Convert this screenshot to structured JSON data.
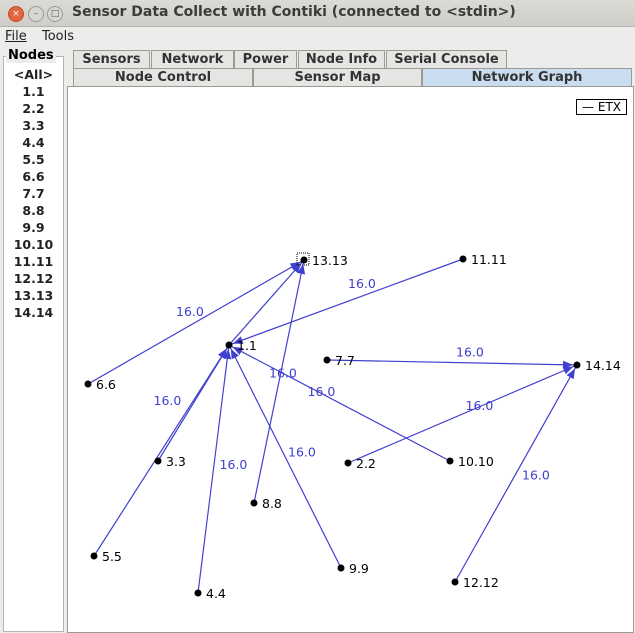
{
  "window": {
    "title": "Sensor Data Collect with Contiki (connected to <stdin>)"
  },
  "menu": {
    "file": "File",
    "tools": "Tools"
  },
  "nodes": {
    "header": "Nodes",
    "items": [
      "<All>",
      "1.1",
      "2.2",
      "3.3",
      "4.4",
      "5.5",
      "6.6",
      "7.7",
      "8.8",
      "9.9",
      "10.10",
      "11.11",
      "12.12",
      "13.13",
      "14.14"
    ]
  },
  "tabs": {
    "row1": [
      "Sensors",
      "Network",
      "Power",
      "Node Info",
      "Serial Console"
    ],
    "row2": [
      "Node Control",
      "Sensor Map",
      "Network Graph"
    ],
    "selected": "Network Graph"
  },
  "graph": {
    "legend": "— ETX",
    "edge_color": "#4040d0",
    "nodes": [
      "1.1",
      "2.2",
      "3.3",
      "4.4",
      "5.5",
      "6.6",
      "7.7",
      "8.8",
      "9.9",
      "10.10",
      "11.11",
      "12.12",
      "13.13",
      "14.14"
    ],
    "selected_node": "13.13",
    "edges": [
      {
        "from": "6.6",
        "to": "13.13",
        "label": "16.0"
      },
      {
        "from": "1.1",
        "to": "13.13",
        "label": "16.0"
      },
      {
        "from": "8.8",
        "to": "13.13",
        "label": "16.0"
      },
      {
        "from": "11.11",
        "to": "1.1",
        "label": "16.0"
      },
      {
        "from": "3.3",
        "to": "1.1",
        "label": "16.0"
      },
      {
        "from": "5.5",
        "to": "1.1",
        "label": "16.0"
      },
      {
        "from": "4.4",
        "to": "1.1",
        "label": "16.0"
      },
      {
        "from": "9.9",
        "to": "1.1",
        "label": "16.0"
      },
      {
        "from": "10.10",
        "to": "1.1",
        "label": "16.0"
      },
      {
        "from": "7.7",
        "to": "14.14",
        "label": "16.0"
      },
      {
        "from": "2.2",
        "to": "14.14",
        "label": "16.0"
      },
      {
        "from": "12.12",
        "to": "14.14",
        "label": "16.0"
      }
    ]
  }
}
